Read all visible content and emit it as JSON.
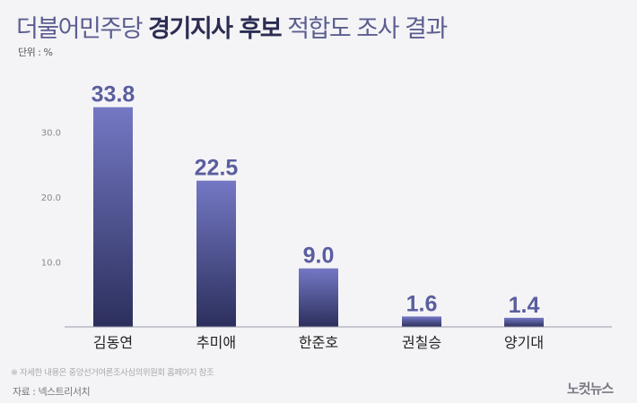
{
  "header": {
    "title_part1": "더불어민주당",
    "title_part2": "경기지사 후보",
    "title_part3": "적합도 조사 결과",
    "unit": "단위 : %"
  },
  "footer": {
    "note": "※ 자세한 내용은 중앙선거여론조사심의위원회 홈페이지 참조",
    "source": "자료 : 넥스트리서치",
    "logo": "노컷뉴스"
  },
  "colors": {
    "bar_top": "#7478c4",
    "bar_bottom": "#2c2f5c",
    "value_label": "#5a5e9e",
    "title_accent": "#2b2d52"
  },
  "chart_data": {
    "type": "bar",
    "categories": [
      "김동연",
      "추미애",
      "한준호",
      "권칠승",
      "양기대"
    ],
    "values": [
      33.8,
      22.5,
      9.0,
      1.6,
      1.4
    ],
    "value_labels": [
      "33.8",
      "22.5",
      "9.0",
      "1.6",
      "1.4"
    ],
    "ylim": [
      0,
      35
    ],
    "yticks": [
      10,
      20,
      30
    ],
    "ytick_labels": [
      "10.0",
      "20.0",
      "30.0"
    ],
    "grid": false
  }
}
